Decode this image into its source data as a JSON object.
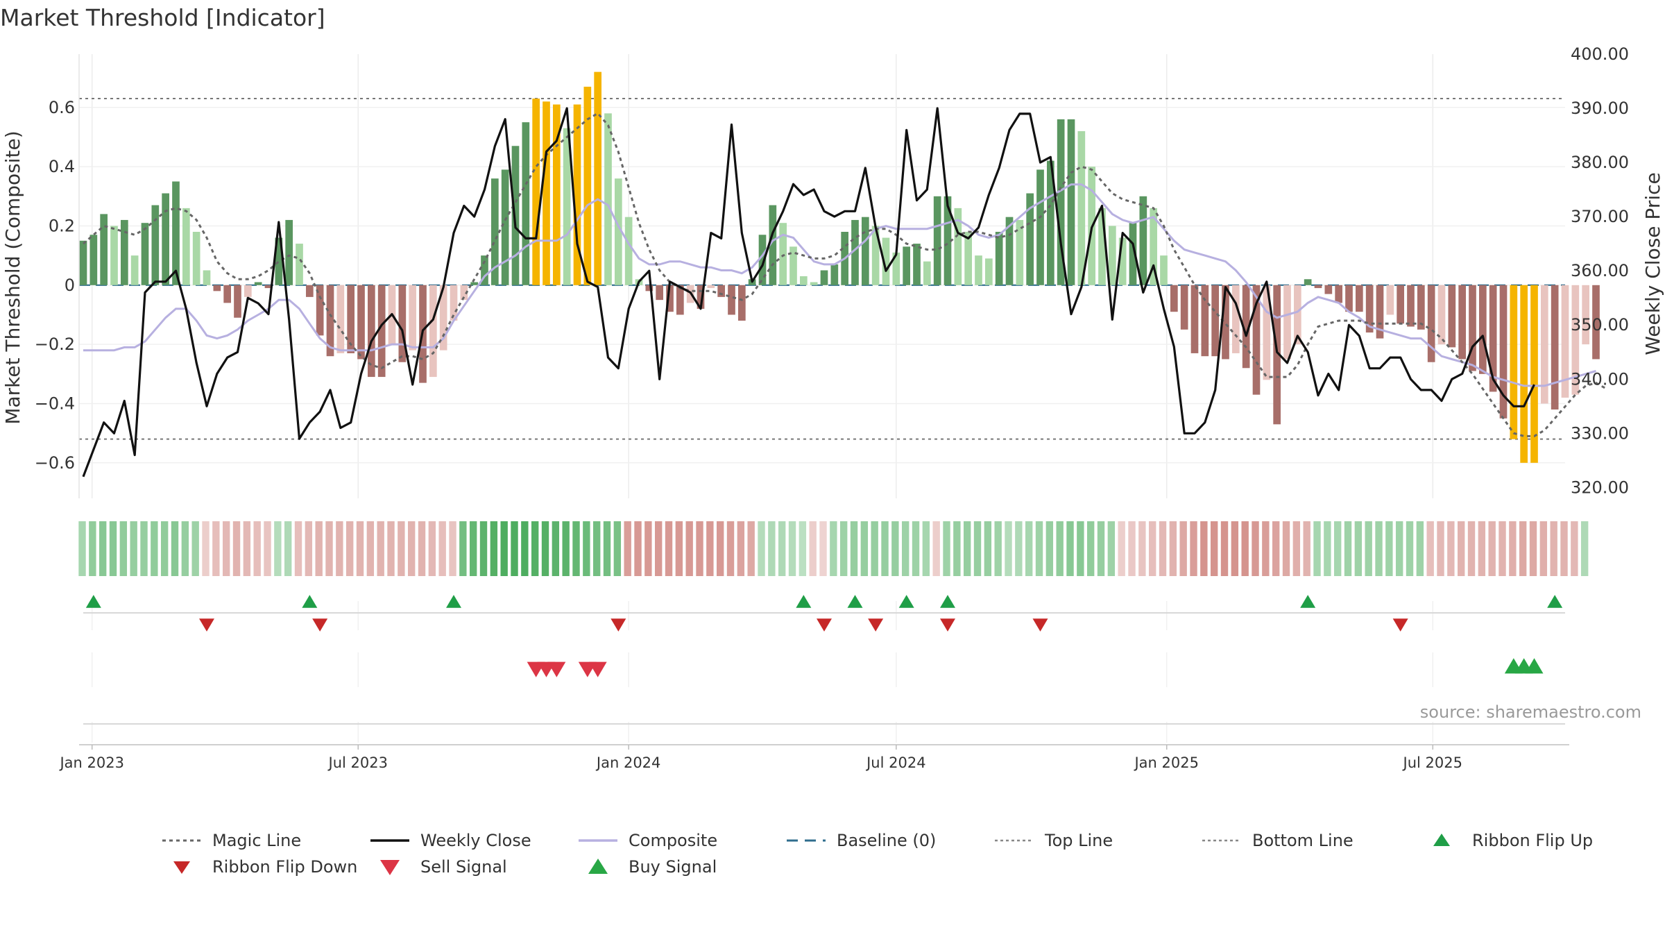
{
  "chart_data": {
    "type": "bar",
    "title": "Market Threshold [Indicator]",
    "ylabel_left": "Market Threshold (Composite)",
    "ylabel_right": "Weekly Close Price",
    "source": "source: sharemaestro.com",
    "x_start": "2022-12-26",
    "x_end": "2025-09-29",
    "ylim_left": [
      -0.72,
      0.78
    ],
    "ylim_right": [
      318,
      400
    ],
    "yticks_left": [
      {
        "v": 0.6,
        "label": "0.6"
      },
      {
        "v": 0.4,
        "label": "0.4"
      },
      {
        "v": 0.2,
        "label": "0.2"
      },
      {
        "v": 0,
        "label": "0"
      },
      {
        "v": -0.2,
        "label": "−0.2"
      },
      {
        "v": -0.4,
        "label": "−0.4"
      },
      {
        "v": -0.6,
        "label": "−0.6"
      }
    ],
    "yticks_right": [
      {
        "v": 400,
        "label": "400.00"
      },
      {
        "v": 390,
        "label": "390.00"
      },
      {
        "v": 380,
        "label": "380.00"
      },
      {
        "v": 370,
        "label": "370.00"
      },
      {
        "v": 360,
        "label": "360.00"
      },
      {
        "v": 350,
        "label": "350.00"
      },
      {
        "v": 340,
        "label": "340.00"
      },
      {
        "v": 330,
        "label": "330.00"
      },
      {
        "v": 320,
        "label": "320.00"
      }
    ],
    "xticks": [
      {
        "date": "2023-01-01",
        "label": "Jan 2023"
      },
      {
        "date": "2023-07-01",
        "label": "Jul 2023"
      },
      {
        "date": "2024-01-01",
        "label": "Jan 2024"
      },
      {
        "date": "2024-07-01",
        "label": "Jul 2024"
      },
      {
        "date": "2025-01-01",
        "label": "Jan 2025"
      },
      {
        "date": "2025-07-01",
        "label": "Jul 2025"
      }
    ],
    "top_line": 0.63,
    "bottom_line": -0.52,
    "bar_values": [
      0.15,
      0.17,
      0.24,
      0.2,
      0.22,
      0.1,
      0.21,
      0.27,
      0.31,
      0.35,
      0.26,
      0.18,
      0.05,
      -0.02,
      -0.06,
      -0.11,
      -0.04,
      0.01,
      -0.01,
      0.16,
      0.22,
      0.14,
      -0.04,
      -0.17,
      -0.24,
      -0.23,
      -0.23,
      -0.25,
      -0.31,
      -0.31,
      -0.2,
      -0.26,
      -0.22,
      -0.33,
      -0.31,
      -0.22,
      -0.12,
      -0.05,
      0.01,
      0.1,
      0.36,
      0.39,
      0.47,
      0.55,
      0.63,
      0.62,
      0.61,
      0.53,
      0.61,
      0.67,
      0.72,
      0.58,
      0.36,
      0.23,
      0.02,
      -0.02,
      -0.05,
      -0.09,
      -0.1,
      -0.06,
      -0.08,
      -0.01,
      -0.04,
      -0.1,
      -0.12,
      0.02,
      0.17,
      0.27,
      0.21,
      0.13,
      0.03,
      0.01,
      0.05,
      0.07,
      0.18,
      0.22,
      0.23,
      0.2,
      0.16,
      0.11,
      0.13,
      0.14,
      0.08,
      0.3,
      0.3,
      0.26,
      0.18,
      0.1,
      0.09,
      0.18,
      0.23,
      0.22,
      0.31,
      0.39,
      0.42,
      0.56,
      0.56,
      0.52,
      0.4,
      0.26,
      0.2,
      0.16,
      0.21,
      0.3,
      0.26,
      0.1,
      -0.09,
      -0.15,
      -0.23,
      -0.24,
      -0.24,
      -0.25,
      -0.23,
      -0.28,
      -0.37,
      -0.32,
      -0.47,
      -0.25,
      -0.2,
      0.02,
      -0.01,
      -0.03,
      -0.06,
      -0.09,
      -0.09,
      -0.16,
      -0.18,
      -0.1,
      -0.13,
      -0.14,
      -0.15,
      -0.26,
      -0.2,
      -0.21,
      -0.25,
      -0.29,
      -0.3,
      -0.36,
      -0.45,
      -0.52,
      -0.6,
      -0.6,
      -0.4,
      -0.42,
      -0.38,
      -0.37,
      -0.2,
      -0.25
    ],
    "magic_line": [
      0.14,
      0.17,
      0.2,
      0.19,
      0.18,
      0.17,
      0.19,
      0.22,
      0.25,
      0.26,
      0.25,
      0.22,
      0.16,
      0.08,
      0.04,
      0.02,
      0.02,
      0.03,
      0.05,
      0.08,
      0.1,
      0.09,
      0.04,
      -0.04,
      -0.1,
      -0.15,
      -0.2,
      -0.24,
      -0.27,
      -0.28,
      -0.26,
      -0.24,
      -0.24,
      -0.25,
      -0.23,
      -0.17,
      -0.1,
      -0.04,
      0.02,
      0.08,
      0.15,
      0.22,
      0.28,
      0.34,
      0.4,
      0.44,
      0.47,
      0.5,
      0.53,
      0.56,
      0.58,
      0.54,
      0.45,
      0.33,
      0.21,
      0.12,
      0.05,
      0.01,
      -0.01,
      -0.02,
      -0.02,
      -0.02,
      -0.03,
      -0.04,
      -0.05,
      -0.03,
      0.02,
      0.07,
      0.1,
      0.11,
      0.1,
      0.09,
      0.09,
      0.1,
      0.13,
      0.16,
      0.18,
      0.19,
      0.19,
      0.17,
      0.14,
      0.13,
      0.12,
      0.12,
      0.14,
      0.17,
      0.18,
      0.18,
      0.17,
      0.16,
      0.17,
      0.19,
      0.21,
      0.23,
      0.27,
      0.33,
      0.38,
      0.4,
      0.39,
      0.35,
      0.31,
      0.29,
      0.28,
      0.27,
      0.26,
      0.2,
      0.12,
      0.06,
      0.0,
      -0.05,
      -0.09,
      -0.13,
      -0.17,
      -0.21,
      -0.26,
      -0.31,
      -0.31,
      -0.31,
      -0.27,
      -0.2,
      -0.14,
      -0.13,
      -0.12,
      -0.12,
      -0.12,
      -0.13,
      -0.13,
      -0.13,
      -0.13,
      -0.13,
      -0.13,
      -0.15,
      -0.18,
      -0.22,
      -0.26,
      -0.3,
      -0.35,
      -0.4,
      -0.45,
      -0.5,
      -0.51,
      -0.51,
      -0.49,
      -0.45,
      -0.41,
      -0.37,
      -0.34,
      -0.33,
      -0.35
    ],
    "composite": [
      -0.22,
      -0.22,
      -0.22,
      -0.22,
      -0.21,
      -0.21,
      -0.19,
      -0.15,
      -0.11,
      -0.08,
      -0.08,
      -0.12,
      -0.17,
      -0.18,
      -0.17,
      -0.15,
      -0.12,
      -0.1,
      -0.08,
      -0.05,
      -0.05,
      -0.08,
      -0.13,
      -0.18,
      -0.21,
      -0.22,
      -0.22,
      -0.22,
      -0.22,
      -0.21,
      -0.2,
      -0.2,
      -0.21,
      -0.21,
      -0.21,
      -0.18,
      -0.12,
      -0.07,
      -0.02,
      0.03,
      0.06,
      0.08,
      0.1,
      0.13,
      0.15,
      0.15,
      0.15,
      0.17,
      0.22,
      0.27,
      0.29,
      0.27,
      0.2,
      0.14,
      0.09,
      0.07,
      0.07,
      0.08,
      0.08,
      0.07,
      0.06,
      0.06,
      0.05,
      0.05,
      0.04,
      0.06,
      0.1,
      0.15,
      0.17,
      0.16,
      0.12,
      0.08,
      0.07,
      0.07,
      0.09,
      0.12,
      0.15,
      0.19,
      0.2,
      0.19,
      0.19,
      0.19,
      0.19,
      0.2,
      0.21,
      0.22,
      0.2,
      0.17,
      0.16,
      0.17,
      0.2,
      0.23,
      0.26,
      0.28,
      0.3,
      0.32,
      0.34,
      0.34,
      0.32,
      0.28,
      0.24,
      0.22,
      0.21,
      0.22,
      0.23,
      0.19,
      0.15,
      0.12,
      0.11,
      0.1,
      0.09,
      0.08,
      0.05,
      0.01,
      -0.04,
      -0.09,
      -0.11,
      -0.1,
      -0.09,
      -0.06,
      -0.04,
      -0.05,
      -0.06,
      -0.09,
      -0.11,
      -0.14,
      -0.15,
      -0.16,
      -0.17,
      -0.18,
      -0.18,
      -0.21,
      -0.24,
      -0.25,
      -0.26,
      -0.27,
      -0.29,
      -0.31,
      -0.32,
      -0.33,
      -0.34,
      -0.34,
      -0.34,
      -0.33,
      -0.32,
      -0.31,
      -0.3,
      -0.29
    ],
    "weekly_close": [
      322,
      327,
      332,
      330,
      336,
      326,
      356,
      358,
      358,
      360,
      353,
      343,
      335,
      341,
      344,
      345,
      355,
      354,
      352,
      369,
      351,
      329,
      332,
      334,
      338,
      331,
      332,
      341,
      347,
      350,
      352,
      349,
      339,
      349,
      351,
      357,
      367,
      372,
      370,
      375,
      383,
      388,
      368,
      366,
      366,
      382,
      384,
      390,
      365,
      358,
      357,
      344,
      342,
      353,
      358,
      360,
      340,
      358,
      357,
      356,
      353,
      367,
      366,
      387,
      367,
      358,
      361,
      367,
      371,
      376,
      374,
      375,
      371,
      370,
      371,
      371,
      379,
      368,
      360,
      363,
      386,
      373,
      375,
      390,
      372,
      367,
      366,
      368,
      374,
      379,
      386,
      389,
      389,
      380,
      381,
      365,
      352,
      357,
      368,
      372,
      351,
      367,
      365,
      356,
      361,
      353,
      346,
      330,
      330,
      332,
      338,
      357,
      354,
      348,
      354,
      358,
      345,
      343,
      348,
      345,
      337,
      341,
      338,
      350,
      348,
      342,
      342,
      344,
      344,
      340,
      338,
      338,
      336,
      340,
      341,
      346,
      348,
      340,
      337,
      335,
      335,
      339
    ],
    "ribbon": [
      0.35,
      0.5,
      0.55,
      0.55,
      0.5,
      0.45,
      0.45,
      0.5,
      0.5,
      0.55,
      0.45,
      0.4,
      -0.2,
      -0.35,
      -0.4,
      -0.45,
      -0.4,
      -0.35,
      -0.3,
      0.25,
      0.3,
      -0.35,
      -0.4,
      -0.45,
      -0.45,
      -0.45,
      -0.45,
      -0.45,
      -0.45,
      -0.45,
      -0.45,
      -0.45,
      -0.45,
      -0.45,
      -0.4,
      -0.35,
      -0.3,
      0.7,
      0.8,
      0.85,
      0.9,
      0.95,
      0.95,
      0.95,
      0.9,
      0.9,
      0.85,
      0.85,
      0.8,
      0.75,
      0.7,
      0.7,
      0.65,
      -0.65,
      -0.7,
      -0.7,
      -0.7,
      -0.7,
      -0.7,
      -0.7,
      -0.7,
      -0.7,
      -0.7,
      -0.65,
      -0.6,
      -0.55,
      0.25,
      0.3,
      0.3,
      0.25,
      0.2,
      -0.2,
      -0.15,
      0.35,
      0.4,
      0.45,
      0.45,
      0.45,
      0.45,
      0.45,
      0.4,
      0.4,
      0.35,
      -0.2,
      0.4,
      0.45,
      0.45,
      0.45,
      0.45,
      0.4,
      0.25,
      0.3,
      0.35,
      0.4,
      0.45,
      0.5,
      0.55,
      0.55,
      0.5,
      0.45,
      0.4,
      -0.2,
      -0.25,
      -0.3,
      -0.35,
      -0.4,
      -0.45,
      -0.55,
      -0.65,
      -0.75,
      -0.75,
      -0.75,
      -0.75,
      -0.75,
      -0.7,
      -0.65,
      -0.6,
      -0.55,
      -0.5,
      -0.45,
      0.35,
      0.35,
      0.35,
      0.4,
      0.4,
      0.4,
      0.4,
      0.4,
      0.4,
      0.4,
      0.4,
      -0.35,
      -0.4,
      -0.4,
      -0.45,
      -0.45,
      -0.45,
      -0.45,
      -0.45,
      -0.5,
      -0.55,
      -0.55,
      -0.5,
      -0.45,
      -0.45,
      -0.4,
      0.3
    ],
    "ribbon_flip_up": [
      "2023-01-02",
      "2023-05-29",
      "2023-09-04",
      "2024-04-29",
      "2024-06-03",
      "2024-07-08",
      "2024-08-05",
      "2025-04-07",
      "2025-09-22"
    ],
    "ribbon_flip_down": [
      "2023-03-20",
      "2023-06-05",
      "2023-12-25",
      "2024-05-13",
      "2024-06-17",
      "2024-08-05",
      "2024-10-07",
      "2025-06-09"
    ],
    "sell_signal": [
      "2023-10-30",
      "2023-11-06",
      "2023-11-13",
      "2023-12-04",
      "2023-12-11"
    ],
    "buy_signal": [
      "2025-08-25",
      "2025-09-01",
      "2025-09-08"
    ],
    "legend": {
      "placement": "bottom",
      "items": [
        {
          "key": "magic",
          "label": "Magic Line"
        },
        {
          "key": "close",
          "label": "Weekly Close"
        },
        {
          "key": "composite",
          "label": "Composite"
        },
        {
          "key": "baseline",
          "label": "Baseline (0)"
        },
        {
          "key": "top",
          "label": "Top Line"
        },
        {
          "key": "bottom",
          "label": "Bottom Line"
        },
        {
          "key": "flip_up",
          "label": "Ribbon Flip Up"
        },
        {
          "key": "flip_down",
          "label": "Ribbon Flip Down"
        },
        {
          "key": "sell",
          "label": "Sell Signal"
        },
        {
          "key": "buy",
          "label": "Buy Signal"
        }
      ]
    },
    "colors": {
      "bar_pos_strong": "#5a9660",
      "bar_pos_weak": "#a9d8a6",
      "bar_neg_strong": "#a86e69",
      "bar_neg_weak": "#e8c4bf",
      "bar_extreme": "#f5b400",
      "close": "#111111",
      "magic": "#666666",
      "composite": "#b7b0e0",
      "baseline": "#2f6d8e",
      "ribbon_pos": "#3da550",
      "ribbon_neg": "#c8726b",
      "flip_up": "#1f9e47",
      "flip_down": "#c62828",
      "sell": "#dc3545",
      "buy": "#28a745"
    }
  }
}
